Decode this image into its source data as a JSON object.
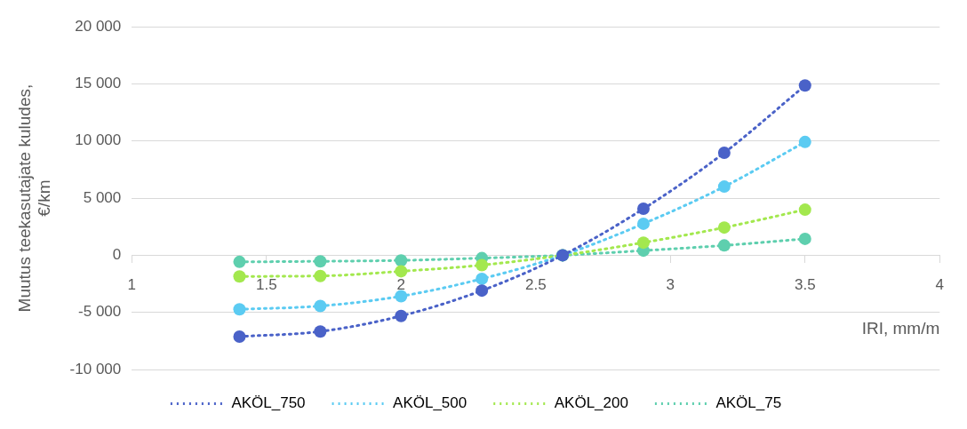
{
  "chart_data": {
    "type": "line",
    "xlabel": "IRI, mm/m",
    "ylabel": "Muutus teekasutajate kuludes, €/km",
    "x": [
      1.4,
      1.7,
      2.0,
      2.3,
      2.6,
      2.9,
      3.2,
      3.5
    ],
    "series": [
      {
        "name": "AKÖL_750",
        "color": "#4a62c8",
        "values": [
          -7120,
          -6670,
          -5310,
          -3090,
          0,
          4070,
          8970,
          14860
        ]
      },
      {
        "name": "AKÖL_500",
        "color": "#5bcbf2",
        "values": [
          -4730,
          -4440,
          -3580,
          -2060,
          0,
          2760,
          6010,
          9920
        ]
      },
      {
        "name": "AKÖL_200",
        "color": "#a3e84e",
        "values": [
          -1850,
          -1810,
          -1400,
          -860,
          0,
          1110,
          2430,
          3990
        ]
      },
      {
        "name": "AKÖL_75",
        "color": "#5ecfae",
        "values": [
          -580,
          -530,
          -450,
          -250,
          0,
          410,
          860,
          1440
        ]
      }
    ],
    "xlim": [
      1,
      4
    ],
    "xticks": [
      1,
      1.5,
      2,
      2.5,
      3,
      3.5,
      4
    ],
    "ylim": [
      -10000,
      20000
    ],
    "yticks": [
      {
        "value": -10000,
        "label": "-10 000"
      },
      {
        "value": -5000,
        "label": "-5 000"
      },
      0,
      {
        "value": 5000,
        "label": "5 000"
      },
      {
        "value": 10000,
        "label": "10 000"
      },
      {
        "value": 15000,
        "label": "15 000"
      },
      {
        "value": 20000,
        "label": "20 000"
      }
    ],
    "grid": "y",
    "legend": "bottom",
    "marker": "circle",
    "line_style": "dotted"
  }
}
